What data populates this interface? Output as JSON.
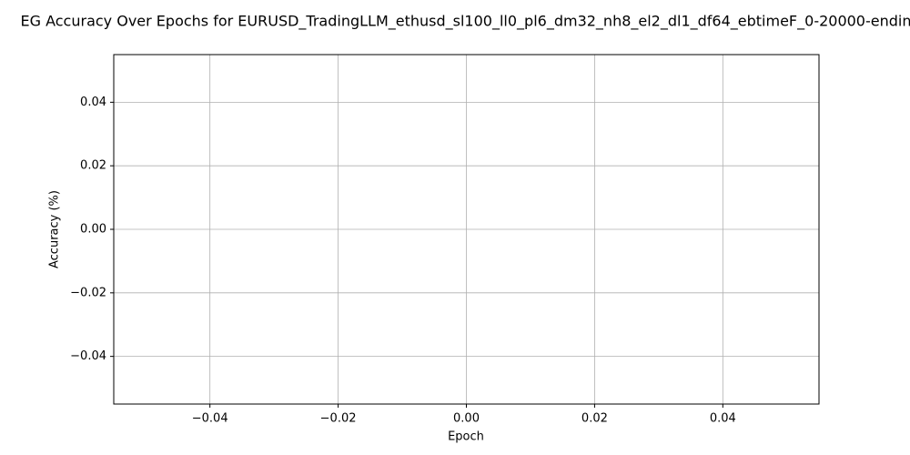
{
  "chart_data": {
    "type": "line",
    "title": "EG Accuracy Over Epochs for EURUSD_TradingLLM_ethusd_sl100_ll0_pl6_dm32_nh8_el2_dl1_df64_ebtimeF_0-20000-endin",
    "xlabel": "Epoch",
    "ylabel": "Accuracy (%)",
    "xlim": [
      -0.055,
      0.055
    ],
    "ylim": [
      -0.055,
      0.055
    ],
    "xticks": [
      -0.04,
      -0.02,
      0.0,
      0.02,
      0.04
    ],
    "xtick_labels": [
      "−0.04",
      "−0.02",
      "0.00",
      "0.02",
      "0.04"
    ],
    "yticks": [
      0.04,
      0.02,
      0.0,
      -0.02,
      -0.04
    ],
    "ytick_labels": [
      "0.04",
      "0.02",
      "0.00",
      "−0.02",
      "−0.04"
    ],
    "grid": true,
    "series": [
      {
        "x": [],
        "y": []
      }
    ]
  }
}
